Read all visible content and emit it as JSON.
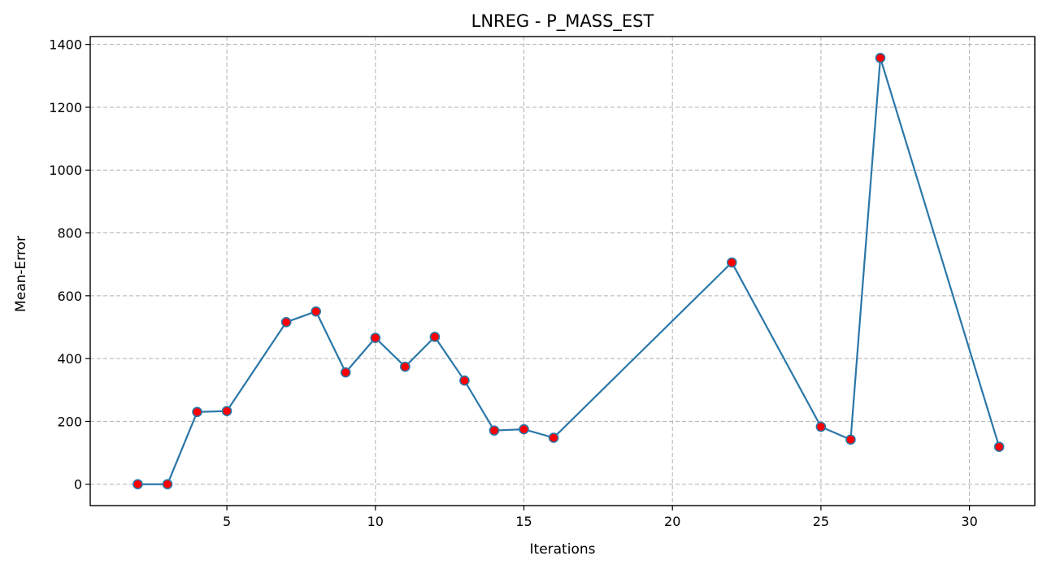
{
  "chart_data": {
    "type": "line",
    "title": "LNREG - P_MASS_EST",
    "xlabel": "Iterations",
    "ylabel": "Mean-Error",
    "xlim": [
      0.4,
      32.2
    ],
    "ylim": [
      -68,
      1425
    ],
    "xticks": [
      5,
      10,
      15,
      20,
      25,
      30
    ],
    "yticks": [
      0,
      200,
      400,
      600,
      800,
      1000,
      1200,
      1400
    ],
    "grid": true,
    "line_color": "#2a77a8",
    "marker_face_color": "#ff0000",
    "marker_edge_color": "#2a77a8",
    "grid_color": "#b0b0b0",
    "series": [
      {
        "x": [
          2,
          3,
          4,
          5,
          7,
          8,
          9,
          10,
          11,
          12,
          13,
          14,
          15,
          16,
          22,
          25,
          26,
          27,
          31
        ],
        "y": [
          0,
          0,
          230,
          233,
          516,
          550,
          356,
          466,
          374,
          469,
          330,
          171,
          175,
          148,
          706,
          183,
          142,
          1357,
          119
        ]
      }
    ]
  }
}
